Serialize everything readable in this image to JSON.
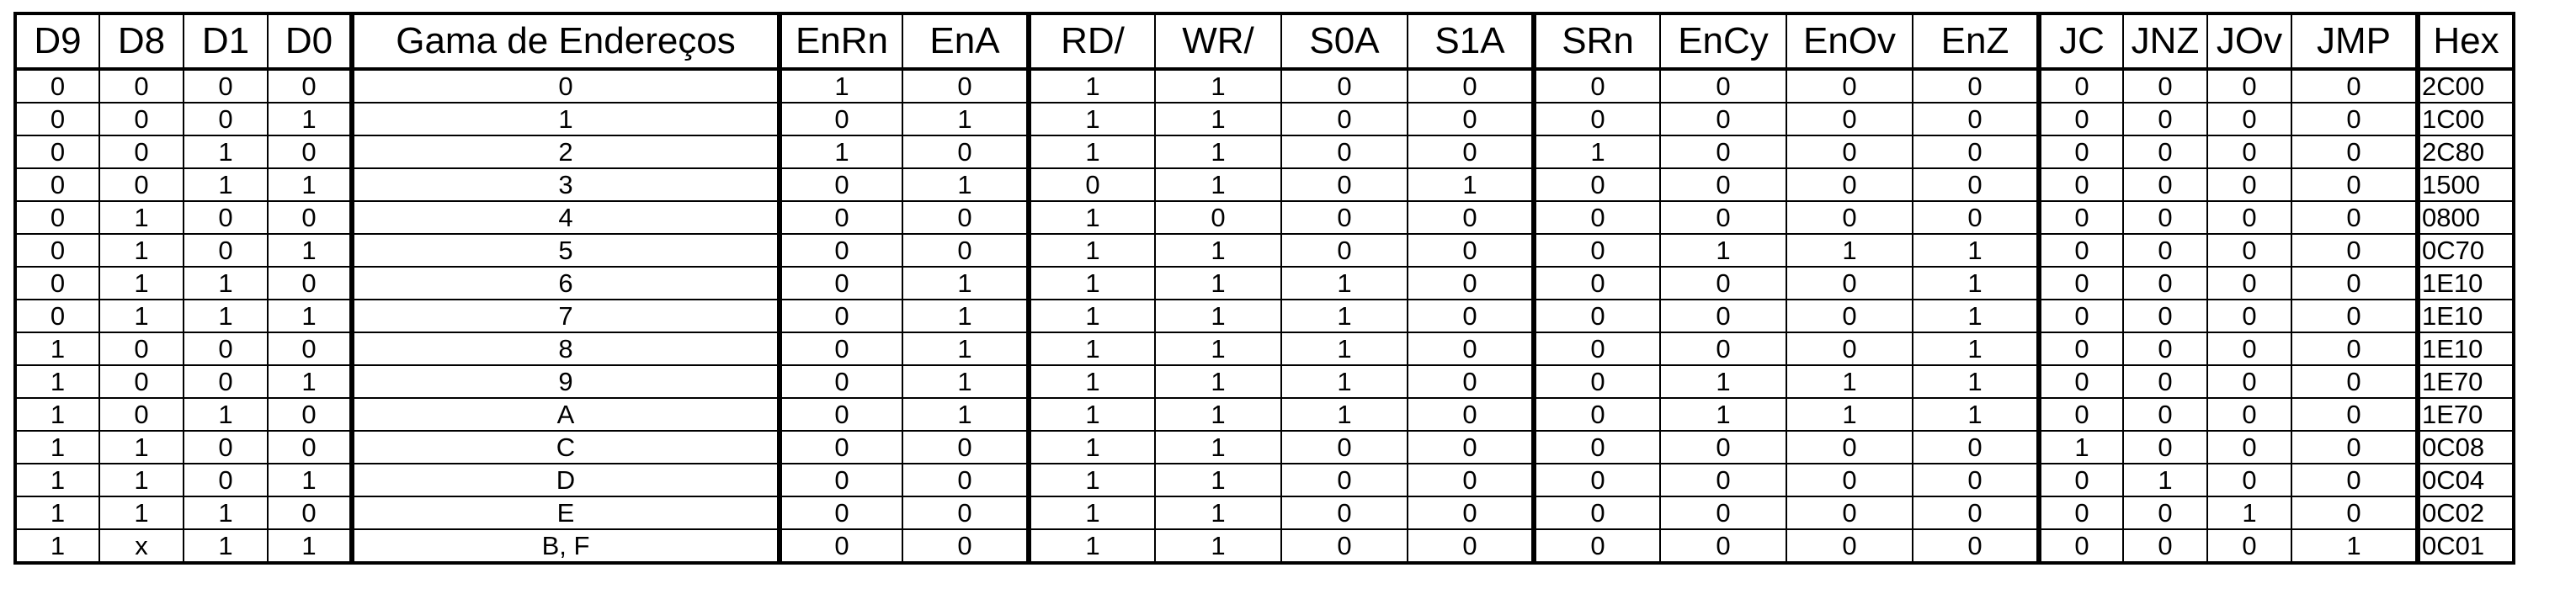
{
  "table": {
    "columns": [
      "D9",
      "D8",
      "D1",
      "D0",
      "Gama de Endereços",
      "EnRn",
      "EnA",
      "RD/",
      "WR/",
      "S0A",
      "S1A",
      "SRn",
      "EnCy",
      "EnOv",
      "EnZ",
      "JC",
      "JNZ",
      "JOv",
      "JMP",
      "Hex"
    ],
    "rows": [
      [
        "0",
        "0",
        "0",
        "0",
        "0",
        "1",
        "0",
        "1",
        "1",
        "0",
        "0",
        "0",
        "0",
        "0",
        "0",
        "0",
        "0",
        "0",
        "0",
        "2C00"
      ],
      [
        "0",
        "0",
        "0",
        "1",
        "1",
        "0",
        "1",
        "1",
        "1",
        "0",
        "0",
        "0",
        "0",
        "0",
        "0",
        "0",
        "0",
        "0",
        "0",
        "1C00"
      ],
      [
        "0",
        "0",
        "1",
        "0",
        "2",
        "1",
        "0",
        "1",
        "1",
        "0",
        "0",
        "1",
        "0",
        "0",
        "0",
        "0",
        "0",
        "0",
        "0",
        "2C80"
      ],
      [
        "0",
        "0",
        "1",
        "1",
        "3",
        "0",
        "1",
        "0",
        "1",
        "0",
        "1",
        "0",
        "0",
        "0",
        "0",
        "0",
        "0",
        "0",
        "0",
        "1500"
      ],
      [
        "0",
        "1",
        "0",
        "0",
        "4",
        "0",
        "0",
        "1",
        "0",
        "0",
        "0",
        "0",
        "0",
        "0",
        "0",
        "0",
        "0",
        "0",
        "0",
        "0800"
      ],
      [
        "0",
        "1",
        "0",
        "1",
        "5",
        "0",
        "0",
        "1",
        "1",
        "0",
        "0",
        "0",
        "1",
        "1",
        "1",
        "0",
        "0",
        "0",
        "0",
        "0C70"
      ],
      [
        "0",
        "1",
        "1",
        "0",
        "6",
        "0",
        "1",
        "1",
        "1",
        "1",
        "0",
        "0",
        "0",
        "0",
        "1",
        "0",
        "0",
        "0",
        "0",
        "1E10"
      ],
      [
        "0",
        "1",
        "1",
        "1",
        "7",
        "0",
        "1",
        "1",
        "1",
        "1",
        "0",
        "0",
        "0",
        "0",
        "1",
        "0",
        "0",
        "0",
        "0",
        "1E10"
      ],
      [
        "1",
        "0",
        "0",
        "0",
        "8",
        "0",
        "1",
        "1",
        "1",
        "1",
        "0",
        "0",
        "0",
        "0",
        "1",
        "0",
        "0",
        "0",
        "0",
        "1E10"
      ],
      [
        "1",
        "0",
        "0",
        "1",
        "9",
        "0",
        "1",
        "1",
        "1",
        "1",
        "0",
        "0",
        "1",
        "1",
        "1",
        "0",
        "0",
        "0",
        "0",
        "1E70"
      ],
      [
        "1",
        "0",
        "1",
        "0",
        "A",
        "0",
        "1",
        "1",
        "1",
        "1",
        "0",
        "0",
        "1",
        "1",
        "1",
        "0",
        "0",
        "0",
        "0",
        "1E70"
      ],
      [
        "1",
        "1",
        "0",
        "0",
        "C",
        "0",
        "0",
        "1",
        "1",
        "0",
        "0",
        "0",
        "0",
        "0",
        "0",
        "1",
        "0",
        "0",
        "0",
        "0C08"
      ],
      [
        "1",
        "1",
        "0",
        "1",
        "D",
        "0",
        "0",
        "1",
        "1",
        "0",
        "0",
        "0",
        "0",
        "0",
        "0",
        "0",
        "1",
        "0",
        "0",
        "0C04"
      ],
      [
        "1",
        "1",
        "1",
        "0",
        "E",
        "0",
        "0",
        "1",
        "1",
        "0",
        "0",
        "0",
        "0",
        "0",
        "0",
        "0",
        "0",
        "1",
        "0",
        "0C02"
      ],
      [
        "1",
        "x",
        "1",
        "1",
        "B, F",
        "0",
        "0",
        "1",
        "1",
        "0",
        "0",
        "0",
        "0",
        "0",
        "0",
        "0",
        "0",
        "0",
        "1",
        "0C01"
      ]
    ]
  }
}
